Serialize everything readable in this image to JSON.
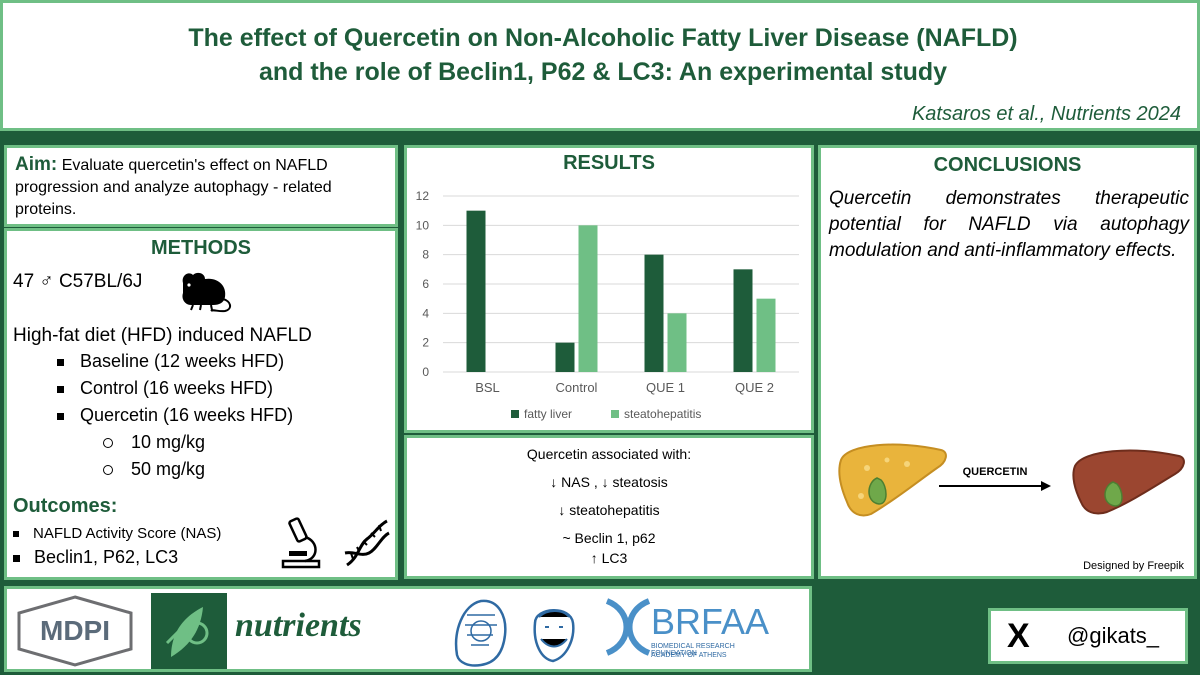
{
  "header": {
    "title_line1": "The effect of Quercetin on Non-Alcoholic Fatty Liver Disease (NAFLD)",
    "title_line2": "and the role of Beclin1, P62 & LC3: An experimental study",
    "citation": "Katsaros et al., Nutrients 2024"
  },
  "aim": {
    "label": "Aim:",
    "text": "Evaluate quercetin's effect on NAFLD progression and analyze autophagy - related proteins."
  },
  "methods": {
    "heading": "METHODS",
    "mice": "47 ♂ C57BL/6J",
    "diet": "High-fat diet (HFD) induced NAFLD",
    "groups": [
      "Baseline (12 weeks HFD)",
      "Control (16 weeks HFD)",
      "Quercetin (16 weeks HFD)"
    ],
    "doses": [
      "10 mg/kg",
      "50 mg/kg"
    ],
    "outcomes_heading": "Outcomes:",
    "outcomes": [
      "NAFLD Activity Score (NAS)",
      "Beclin1, P62, LC3"
    ]
  },
  "results": {
    "heading": "RESULTS"
  },
  "chart_data": {
    "type": "bar",
    "categories": [
      "BSL",
      "Control",
      "QUE 1",
      "QUE 2"
    ],
    "series": [
      {
        "name": "fatty liver",
        "values": [
          11,
          2,
          8,
          7
        ],
        "color": "#1e5c3a"
      },
      {
        "name": "steatohepatitis",
        "values": [
          0,
          10,
          4,
          5
        ],
        "color": "#6fbf85"
      }
    ],
    "yticks": [
      0,
      2,
      4,
      6,
      8,
      10,
      12
    ],
    "ylim": [
      0,
      12
    ],
    "grid": true,
    "legend": "bottom"
  },
  "association": {
    "intro": "Quercetin associated with:",
    "lines": [
      "↓ NAS , ↓ steatosis",
      "↓ steatohepatitis",
      "~ Beclin 1, p62",
      "↑ LC3"
    ]
  },
  "conclusions": {
    "heading": "CONCLUSIONS",
    "text": "Quercetin demonstrates therapeutic potential for NAFLD via autophagy modulation and anti-inflammatory effects.",
    "arrow_label": "QUERCETIN",
    "credit": "Designed by Freepik"
  },
  "footer": {
    "mdpi": "MDPI",
    "journal": "nutrients",
    "brfaa": "BRFAA",
    "brfaa_sub1": "BIOMEDICAL RESEARCH FOUNDATION",
    "brfaa_sub2": "ACADEMY OF ATHENS",
    "x_logo": "X",
    "handle": "@gikats_"
  },
  "colors": {
    "dark_green": "#1e5c3a",
    "light_green": "#6fbf85",
    "liver_fatty": "#e9b43c",
    "liver_healthy": "#8b3f2a"
  },
  "icons": [
    "mouse-icon",
    "microscope-icon",
    "dna-icon",
    "fatty-liver-icon",
    "healthy-liver-icon",
    "arrow-icon",
    "mdpi-logo",
    "nutrients-logo",
    "athens-university-logo",
    "academy-athens-logo",
    "brfaa-logo",
    "x-logo"
  ]
}
